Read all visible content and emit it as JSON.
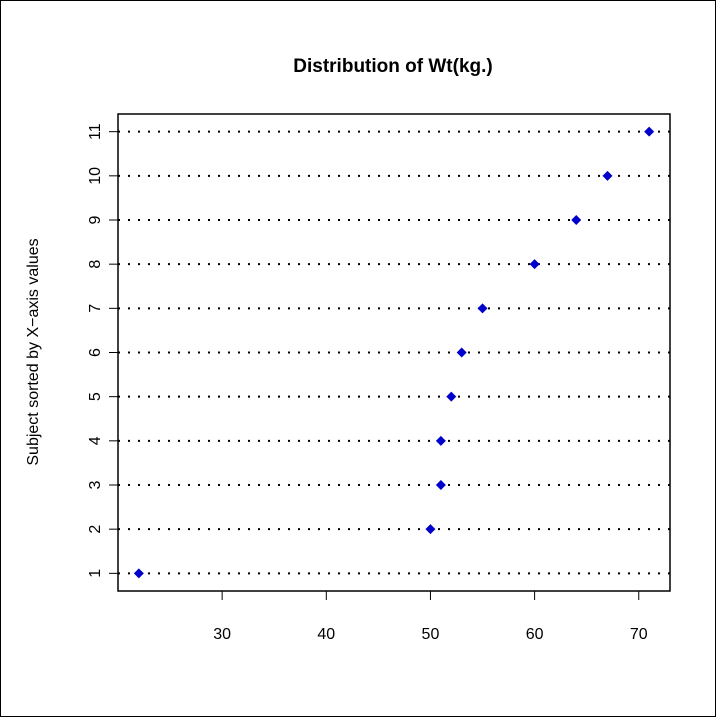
{
  "chart_data": {
    "type": "scatter",
    "subtype": "dotchart",
    "title": "Distribution of Wt(kg.)",
    "xlabel": "",
    "ylabel": "Subject sorted by X−axis values",
    "xlim": [
      20,
      73
    ],
    "ylim": [
      0.6,
      11.4
    ],
    "x_ticks": [
      30,
      40,
      50,
      60,
      70
    ],
    "y_ticks": [
      1,
      2,
      3,
      4,
      5,
      6,
      7,
      8,
      9,
      10,
      11
    ],
    "grid": "dotted horizontal lines at each subject",
    "marker": "diamond",
    "marker_color": "#0000cc",
    "points": [
      {
        "x": 22,
        "y": 1
      },
      {
        "x": 50,
        "y": 2
      },
      {
        "x": 51,
        "y": 3
      },
      {
        "x": 51,
        "y": 4
      },
      {
        "x": 52,
        "y": 5
      },
      {
        "x": 53,
        "y": 6
      },
      {
        "x": 55,
        "y": 7
      },
      {
        "x": 60,
        "y": 8
      },
      {
        "x": 64,
        "y": 9
      },
      {
        "x": 67,
        "y": 10
      },
      {
        "x": 71,
        "y": 11
      }
    ]
  }
}
